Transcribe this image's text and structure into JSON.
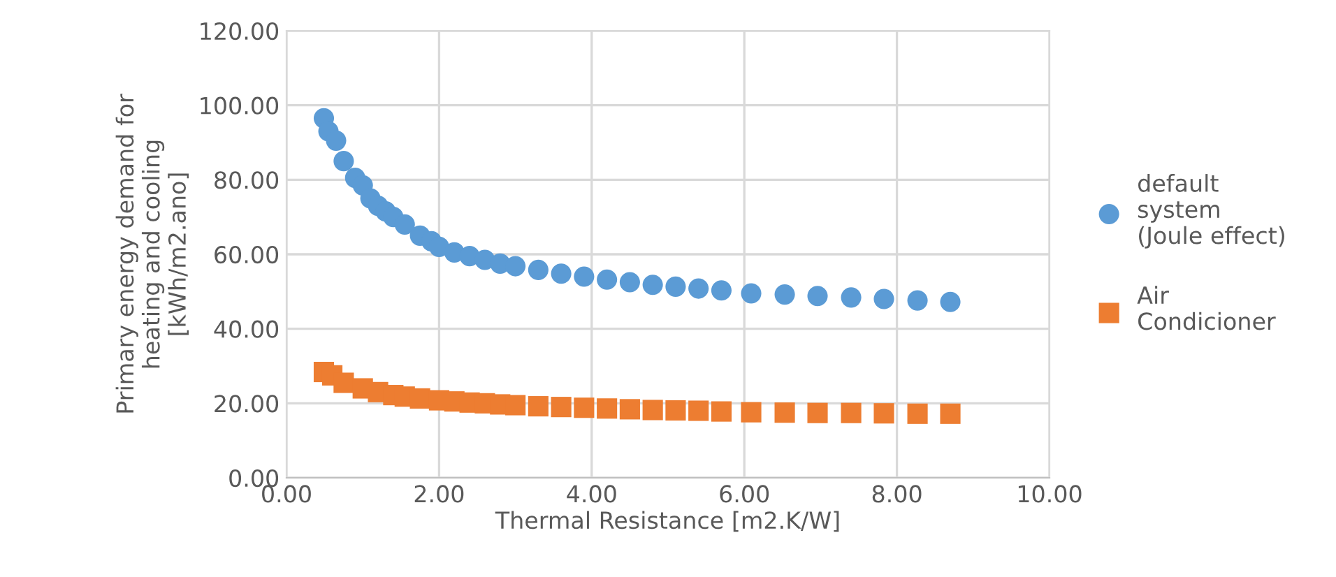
{
  "chart_data": {
    "type": "scatter",
    "xlabel": "Thermal Resistance [m2.K/W]",
    "ylabel": "Primary energy demand for\nheating and cooling\n[kWh/m2.ano]",
    "xlim": [
      0,
      10
    ],
    "xticks": [
      {
        "value": 0,
        "label": "0.00"
      },
      {
        "value": 2,
        "label": "2.00"
      },
      {
        "value": 4,
        "label": "4.00"
      },
      {
        "value": 6,
        "label": "6.00"
      },
      {
        "value": 8,
        "label": "8.00"
      },
      {
        "value": 10,
        "label": "10.00"
      }
    ],
    "ylim": [
      0,
      120
    ],
    "yticks": [
      {
        "value": 0,
        "label": "0.00"
      },
      {
        "value": 20,
        "label": "20.00"
      },
      {
        "value": 40,
        "label": "40.00"
      },
      {
        "value": 60,
        "label": "60.00"
      },
      {
        "value": 80,
        "label": "80.00"
      },
      {
        "value": 100,
        "label": "100.00"
      },
      {
        "value": 120,
        "label": "120.00"
      }
    ],
    "grid": true,
    "legend": "right",
    "series": [
      {
        "name": "default\nsystem\n(Joule effect)",
        "color": "#5b9bd5",
        "marker": "circle",
        "x": [
          0.49,
          0.55,
          0.65,
          0.75,
          0.9,
          1.0,
          1.1,
          1.2,
          1.3,
          1.4,
          1.55,
          1.75,
          1.9,
          2.0,
          2.2,
          2.4,
          2.6,
          2.8,
          3.0,
          3.3,
          3.6,
          3.9,
          4.2,
          4.5,
          4.8,
          5.1,
          5.4,
          5.7,
          6.09,
          6.53,
          6.96,
          7.4,
          7.83,
          8.27,
          8.7
        ],
        "values": [
          96.5,
          93,
          90.5,
          85,
          80.5,
          78.5,
          75,
          73,
          71.5,
          70,
          68,
          65,
          63.5,
          62,
          60.5,
          59.5,
          58.5,
          57.5,
          56.8,
          55.8,
          54.8,
          54,
          53.2,
          52.5,
          51.8,
          51.3,
          50.8,
          50.3,
          49.5,
          49.2,
          48.8,
          48.4,
          48,
          47.6,
          47.2
        ]
      },
      {
        "name": "Air\nCondicioner",
        "color": "#ed7d31",
        "marker": "square",
        "x": [
          0.49,
          0.6,
          0.75,
          1.0,
          1.2,
          1.4,
          1.55,
          1.75,
          2.0,
          2.2,
          2.4,
          2.6,
          2.8,
          3.0,
          3.3,
          3.6,
          3.9,
          4.2,
          4.5,
          4.8,
          5.1,
          5.4,
          5.7,
          6.09,
          6.53,
          6.96,
          7.4,
          7.83,
          8.27,
          8.7
        ],
        "values": [
          28.4,
          27.5,
          25.5,
          24,
          23,
          22.2,
          21.8,
          21.3,
          20.8,
          20.5,
          20.2,
          20,
          19.7,
          19.5,
          19.2,
          19,
          18.8,
          18.6,
          18.4,
          18.2,
          18.1,
          18,
          17.8,
          17.6,
          17.5,
          17.4,
          17.4,
          17.3,
          17.2,
          17.2
        ]
      }
    ]
  }
}
